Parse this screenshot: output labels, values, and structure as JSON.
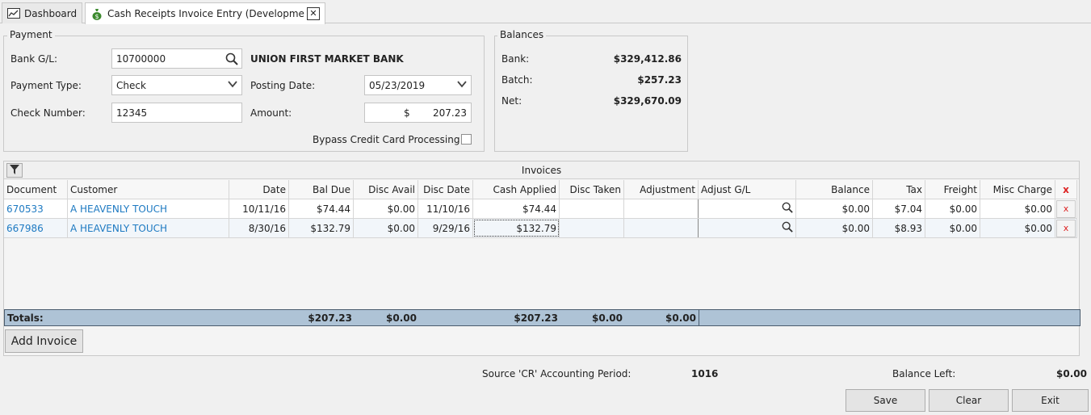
{
  "tabs": [
    {
      "label": "Dashboard",
      "icon": "chart-icon"
    },
    {
      "label": "Cash Receipts Invoice Entry (Developme",
      "icon": "money-bag-icon"
    }
  ],
  "payment": {
    "legend": "Payment",
    "bank_gl_label": "Bank G/L:",
    "bank_gl_value": "10700000",
    "bank_name": "UNION FIRST MARKET BANK",
    "payment_type_label": "Payment Type:",
    "payment_type_value": "Check",
    "posting_date_label": "Posting Date:",
    "posting_date_value": "05/23/2019",
    "check_number_label": "Check Number:",
    "check_number_value": "12345",
    "amount_label": "Amount:",
    "amount_currency": "$",
    "amount_value": "207.23",
    "bypass_label": "Bypass Credit Card Processing"
  },
  "balances": {
    "legend": "Balances",
    "bank_label": "Bank:",
    "bank_value": "$329,412.86",
    "batch_label": "Batch:",
    "batch_value": "$257.23",
    "net_label": "Net:",
    "net_value": "$329,670.09"
  },
  "invoices": {
    "title": "Invoices",
    "headers": {
      "document": "Document",
      "customer": "Customer",
      "date": "Date",
      "bal_due": "Bal Due",
      "disc_avail": "Disc Avail",
      "disc_date": "Disc Date",
      "cash_applied": "Cash Applied",
      "disc_taken": "Disc Taken",
      "adjustment": "Adjustment",
      "adjust_gl": "Adjust G/L",
      "balance": "Balance",
      "tax": "Tax",
      "freight": "Freight",
      "misc_charge": "Misc Charge",
      "delete": "x"
    },
    "rows": [
      {
        "document": "670533",
        "customer": "A HEAVENLY TOUCH",
        "date": "10/11/16",
        "bal_due": "$74.44",
        "disc_avail": "$0.00",
        "disc_date": "11/10/16",
        "cash_applied": "$74.44",
        "disc_taken": "",
        "adjustment": "",
        "adjust_gl": "",
        "balance": "$0.00",
        "tax": "$7.04",
        "freight": "$0.00",
        "misc_charge": "$0.00",
        "delete": "x"
      },
      {
        "document": "667986",
        "customer": "A HEAVENLY TOUCH",
        "date": "8/30/16",
        "bal_due": "$132.79",
        "disc_avail": "$0.00",
        "disc_date": "9/29/16",
        "cash_applied": "$132.79",
        "disc_taken": "",
        "adjustment": "",
        "adjust_gl": "",
        "balance": "$0.00",
        "tax": "$8.93",
        "freight": "$0.00",
        "misc_charge": "$0.00",
        "delete": "x"
      }
    ],
    "totals": {
      "label": "Totals:",
      "bal_due": "$207.23",
      "disc_avail": "$0.00",
      "cash_applied": "$207.23",
      "disc_taken": "$0.00",
      "adjustment": "$0.00"
    },
    "add_invoice_label": "Add Invoice"
  },
  "footer": {
    "period_label": "Source 'CR' Accounting Period:",
    "period_value": "1016",
    "balance_left_label": "Balance Left:",
    "balance_left_value": "$0.00",
    "save_label": "Save",
    "clear_label": "Clear",
    "exit_label": "Exit"
  },
  "colors": {
    "link": "#1e7ac2",
    "totals_bg": "#aec3d6",
    "delete_x": "#d22222"
  }
}
